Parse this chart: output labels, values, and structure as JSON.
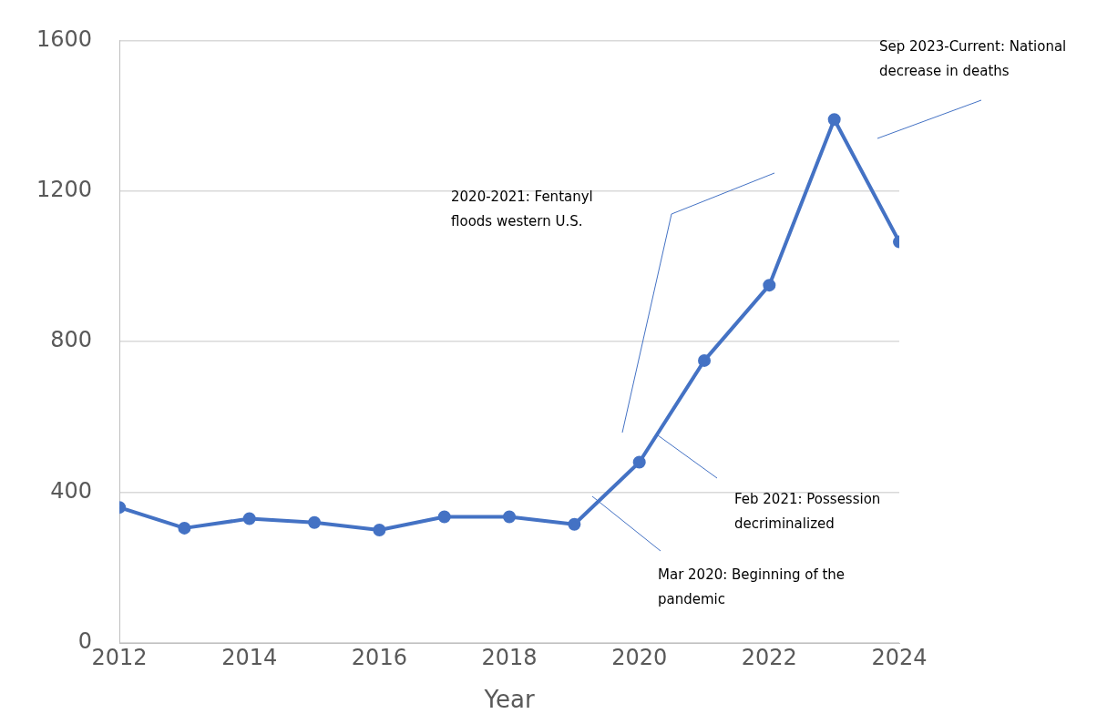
{
  "chart_data": {
    "type": "line",
    "xlabel": "Year",
    "x": [
      2012,
      2013,
      2014,
      2015,
      2016,
      2017,
      2018,
      2019,
      2020,
      2021,
      2022,
      2023,
      2024
    ],
    "series": [
      {
        "color": "#4472c4",
        "values": [
          360,
          305,
          330,
          320,
          300,
          335,
          335,
          315,
          480,
          750,
          950,
          1390,
          1065
        ]
      }
    ],
    "xlim": [
      2012,
      2024
    ],
    "xticks": [
      2012,
      2014,
      2016,
      2018,
      2020,
      2022,
      2024
    ],
    "ylim": [
      0,
      1600
    ],
    "yticks": [
      0,
      400,
      800,
      1200,
      1600
    ],
    "grid": "y",
    "legend": false,
    "marker": "circle",
    "line_style": "solid",
    "annotations": [
      "Mar 2020: Beginning of the pandemic",
      "Feb 2021: Possession decriminalized",
      "2020-2021: Fentanyl floods western U.S.",
      "Sep 2023-Current: National decrease in deaths"
    ]
  }
}
